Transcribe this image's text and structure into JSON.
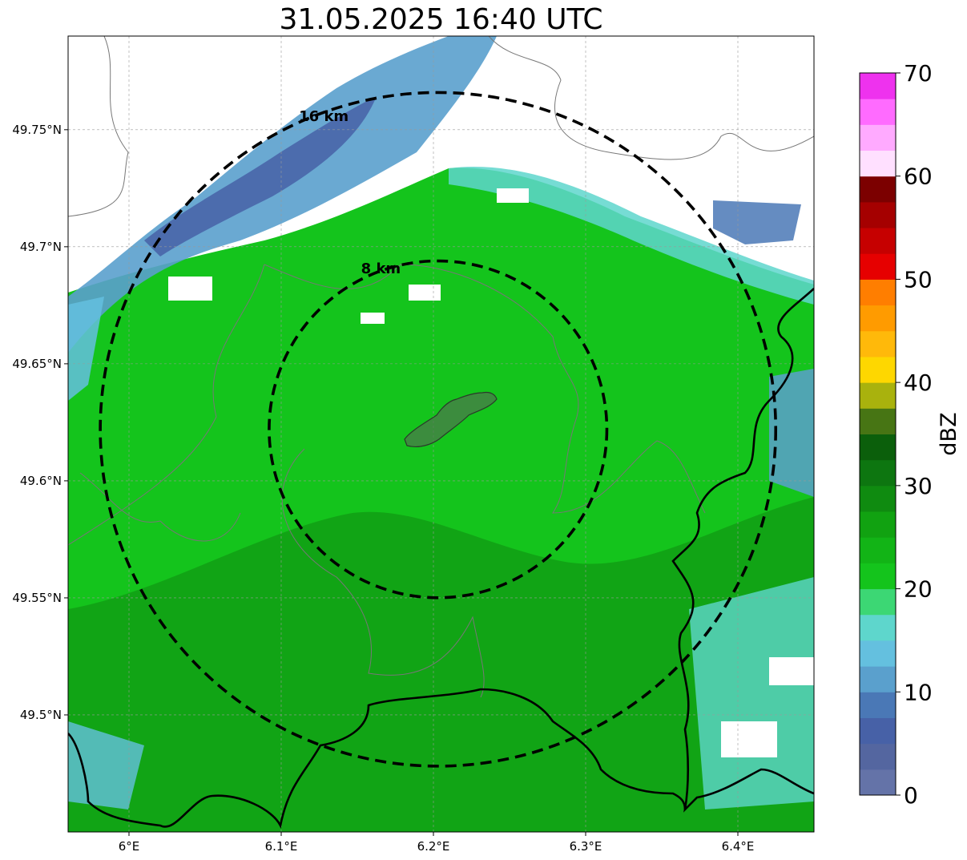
{
  "title": "31.05.2025 16:40 UTC",
  "map": {
    "lon_range": [
      5.96,
      6.45
    ],
    "lat_range": [
      49.45,
      49.79
    ],
    "x_ticks": [
      {
        "value": 6.0,
        "label": "6°E"
      },
      {
        "value": 6.1,
        "label": "6.1°E"
      },
      {
        "value": 6.2,
        "label": "6.2°E"
      },
      {
        "value": 6.3,
        "label": "6.3°E"
      },
      {
        "value": 6.4,
        "label": "6.4°E"
      }
    ],
    "y_ticks": [
      {
        "value": 49.75,
        "label": "49.75°N"
      },
      {
        "value": 49.7,
        "label": "49.7°N"
      },
      {
        "value": 49.65,
        "label": "49.65°N"
      },
      {
        "value": 49.6,
        "label": "49.6°N"
      },
      {
        "value": 49.55,
        "label": "49.55°N"
      },
      {
        "value": 49.5,
        "label": "49.5°N"
      }
    ],
    "grid": true,
    "range_rings": [
      {
        "label": "16 km",
        "radius_km": 16
      },
      {
        "label": "8 km",
        "radius_km": 8
      }
    ],
    "center": {
      "lon": 6.203,
      "lat": 49.622
    },
    "layers": [
      "radar-reflectivity",
      "country-borders",
      "commune-boundaries",
      "city-outline",
      "range-rings"
    ]
  },
  "colorbar": {
    "label": "dBZ",
    "min": 0,
    "max": 70,
    "tick_labels": [
      "0",
      "10",
      "20",
      "30",
      "40",
      "50",
      "60",
      "70"
    ],
    "colors": [
      "#6473a8",
      "#5466a0",
      "#4761a7",
      "#4a78b6",
      "#5aa0cd",
      "#64c0df",
      "#5ed6cc",
      "#3cd774",
      "#14c41c",
      "#12b416",
      "#11a211",
      "#0f8b10",
      "#0d7610",
      "#0b5f0b",
      "#477514",
      "#a9b20d",
      "#fed700",
      "#ffb90a",
      "#ff9b00",
      "#ff7e00",
      "#e60000",
      "#c60000",
      "#a50000",
      "#7c0000",
      "#ffe0ff",
      "#ffaaff",
      "#ff6bff",
      "#ee32ee"
    ]
  }
}
